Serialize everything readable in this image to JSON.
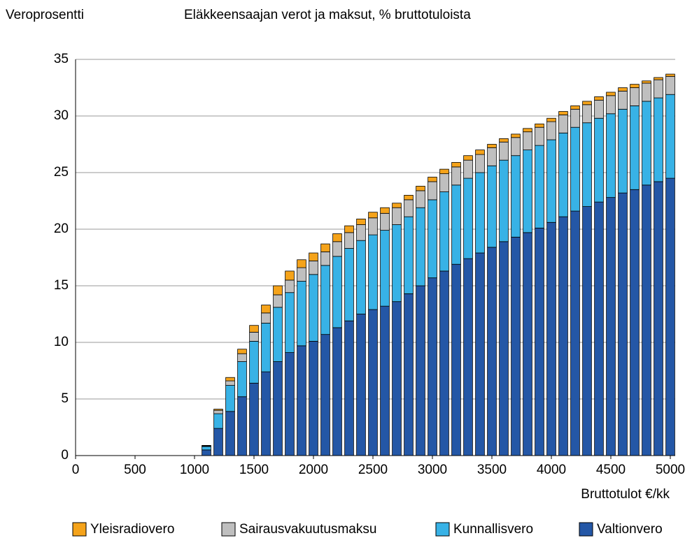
{
  "chart_data": {
    "type": "stacked_bar",
    "title": "Eläkkeensaajan verot ja maksut, % bruttotuloista",
    "y_label": "Veroprosentti",
    "x_label": "Bruttotulot €/kk",
    "x": [
      100,
      200,
      300,
      400,
      500,
      600,
      700,
      800,
      900,
      1000,
      1100,
      1200,
      1300,
      1400,
      1500,
      1600,
      1700,
      1800,
      1900,
      2000,
      2100,
      2200,
      2300,
      2400,
      2500,
      2600,
      2700,
      2800,
      2900,
      3000,
      3100,
      3200,
      3300,
      3400,
      3500,
      3600,
      3700,
      3800,
      3900,
      4000,
      4100,
      4200,
      4300,
      4400,
      4500,
      4600,
      4700,
      4800,
      4900,
      5000
    ],
    "series": [
      {
        "name": "Yleisradiovero",
        "color": "#f5a31a",
        "values": [
          0,
          0,
          0,
          0,
          0,
          0,
          0,
          0,
          0,
          0,
          0.05,
          0.1,
          0.3,
          0.4,
          0.6,
          0.7,
          0.8,
          0.8,
          0.7,
          0.7,
          0.7,
          0.7,
          0.6,
          0.5,
          0.5,
          0.5,
          0.4,
          0.4,
          0.4,
          0.4,
          0.4,
          0.4,
          0.4,
          0.4,
          0.3,
          0.3,
          0.3,
          0.3,
          0.3,
          0.3,
          0.3,
          0.3,
          0.3,
          0.3,
          0.3,
          0.3,
          0.3,
          0.2,
          0.2,
          0.2
        ]
      },
      {
        "name": "Sairausvakuutusmaksu",
        "color": "#bfbfbf",
        "values": [
          0,
          0,
          0,
          0,
          0,
          0,
          0,
          0,
          0,
          0,
          0.05,
          0.3,
          0.4,
          0.7,
          0.8,
          0.9,
          1.1,
          1.1,
          1.2,
          1.2,
          1.2,
          1.3,
          1.4,
          1.4,
          1.5,
          1.5,
          1.5,
          1.5,
          1.5,
          1.6,
          1.6,
          1.6,
          1.6,
          1.6,
          1.6,
          1.6,
          1.6,
          1.6,
          1.6,
          1.6,
          1.6,
          1.6,
          1.6,
          1.6,
          1.6,
          1.6,
          1.6,
          1.6,
          1.6,
          1.6
        ]
      },
      {
        "name": "Kunnallisvero",
        "color": "#38b2e6",
        "values": [
          0,
          0,
          0,
          0,
          0,
          0,
          0,
          0,
          0,
          0,
          0.3,
          1.3,
          2.3,
          3.1,
          3.7,
          4.3,
          4.8,
          5.3,
          5.7,
          5.9,
          6.1,
          6.3,
          6.4,
          6.5,
          6.6,
          6.7,
          6.8,
          6.8,
          6.9,
          6.9,
          7.0,
          7.0,
          7.1,
          7.1,
          7.2,
          7.2,
          7.2,
          7.3,
          7.3,
          7.3,
          7.4,
          7.4,
          7.4,
          7.4,
          7.4,
          7.4,
          7.4,
          7.4,
          7.4,
          7.4
        ]
      },
      {
        "name": "Valtionvero",
        "color": "#2457a6",
        "values": [
          0,
          0,
          0,
          0,
          0,
          0,
          0,
          0,
          0,
          0,
          0.5,
          2.4,
          3.9,
          5.2,
          6.4,
          7.4,
          8.3,
          9.1,
          9.7,
          10.1,
          10.7,
          11.3,
          11.9,
          12.5,
          12.9,
          13.2,
          13.6,
          14.3,
          15.0,
          15.7,
          16.3,
          16.9,
          17.4,
          17.9,
          18.4,
          18.9,
          19.3,
          19.7,
          20.1,
          20.6,
          21.1,
          21.6,
          22.0,
          22.4,
          22.8,
          23.2,
          23.5,
          23.9,
          24.2,
          24.5
        ]
      }
    ],
    "xlim": [
      0,
      5000
    ],
    "xticks": [
      0,
      500,
      1000,
      1500,
      2000,
      2500,
      3000,
      3500,
      4000,
      4500,
      5000
    ],
    "ylim": [
      0,
      35
    ],
    "yticks": [
      0,
      5,
      10,
      15,
      20,
      25,
      30,
      35
    ],
    "grid": true,
    "legend": "bottom"
  }
}
